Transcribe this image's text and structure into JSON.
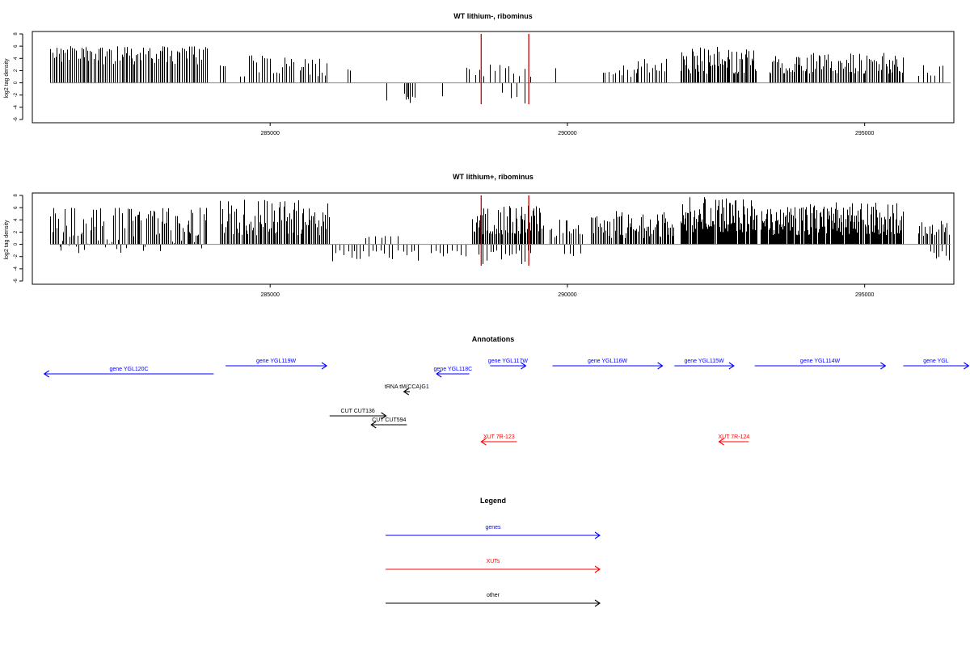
{
  "chart_data": [
    {
      "type": "bar",
      "title": "WT lithium-, ribominus",
      "ylabel": "log2 tag density",
      "xlabel": "",
      "xlim": [
        281000,
        296500
      ],
      "ylim": [
        -6,
        8
      ],
      "yticks": [
        -6,
        -4,
        -2,
        0,
        2,
        4,
        6,
        8
      ],
      "xticks": [
        285000,
        290000,
        295000
      ],
      "marker_color": "#cc0000",
      "markers_x": [
        288550,
        289350
      ],
      "segments": [
        {
          "from": 281300,
          "to": 283950,
          "min": -6,
          "max": -3,
          "sign": -1,
          "step": 30
        },
        {
          "from": 284150,
          "to": 284250,
          "min": 2.5,
          "max": 3.2,
          "sign": 1,
          "step": 50
        },
        {
          "from": 284500,
          "to": 284600,
          "min": 1,
          "max": 1.2,
          "sign": 1,
          "step": 100
        },
        {
          "from": 284650,
          "to": 285400,
          "min": 1.5,
          "max": 4.5,
          "sign": 1,
          "step": 40
        },
        {
          "from": 285500,
          "to": 285950,
          "min": 1,
          "max": 4,
          "sign": 1,
          "step": 40
        },
        {
          "from": 286300,
          "to": 286350,
          "min": 2,
          "max": 2.4,
          "sign": 1,
          "step": 60
        },
        {
          "from": 286950,
          "to": 287000,
          "min": 2.5,
          "max": 3,
          "sign": -1,
          "step": 60
        },
        {
          "from": 287250,
          "to": 287450,
          "min": 1.5,
          "max": 3.5,
          "sign": -1,
          "step": 30
        },
        {
          "from": 287900,
          "to": 287950,
          "min": 2,
          "max": 2.4,
          "sign": -1,
          "step": 60
        },
        {
          "from": 288300,
          "to": 288350,
          "min": 2,
          "max": 2.5,
          "sign": 1,
          "step": 60
        },
        {
          "from": 288450,
          "to": 289400,
          "min": 1,
          "max": 3,
          "sign": 1,
          "step": 90
        },
        {
          "from": 288900,
          "to": 289350,
          "min": 1,
          "max": 3.5,
          "sign": -1,
          "step": 120
        },
        {
          "from": 289800,
          "to": 289850,
          "min": 2.2,
          "max": 2.6,
          "sign": 1,
          "step": 60
        },
        {
          "from": 290600,
          "to": 291200,
          "min": 1,
          "max": 3,
          "sign": 1,
          "step": 50
        },
        {
          "from": 291150,
          "to": 291700,
          "min": 1.5,
          "max": 4,
          "sign": 1,
          "step": 40
        },
        {
          "from": 291900,
          "to": 293200,
          "min": 1.5,
          "max": 6,
          "sign": 1,
          "step": 22
        },
        {
          "from": 293400,
          "to": 295650,
          "min": 1.5,
          "max": 5,
          "sign": 1,
          "step": 25
        },
        {
          "from": 295900,
          "to": 296350,
          "min": 1,
          "max": 3,
          "sign": 1,
          "step": 60
        }
      ]
    },
    {
      "type": "bar",
      "title": "WT lithium+, ribominus",
      "ylabel": "log2 tag density",
      "xlabel": "",
      "xlim": [
        281000,
        296500
      ],
      "ylim": [
        -6,
        8
      ],
      "yticks": [
        -6,
        -4,
        -2,
        0,
        2,
        4,
        6,
        8
      ],
      "xticks": [
        285000,
        290000,
        295000
      ],
      "marker_color": "#cc0000",
      "markers_x": [
        288550,
        289350
      ],
      "segments": [
        {
          "from": 281300,
          "to": 283950,
          "min": -6,
          "max": 1.5,
          "sign": -1,
          "step": 25
        },
        {
          "from": 284150,
          "to": 286000,
          "min": 1.5,
          "max": 7.3,
          "sign": 1,
          "step": 22
        },
        {
          "from": 286050,
          "to": 287500,
          "min": 1,
          "max": 3,
          "sign": -1,
          "step": 70
        },
        {
          "from": 286600,
          "to": 287200,
          "min": 1,
          "max": 2.5,
          "sign": 1,
          "step": 90
        },
        {
          "from": 287700,
          "to": 288300,
          "min": 1,
          "max": 2,
          "sign": -1,
          "step": 70
        },
        {
          "from": 288400,
          "to": 289600,
          "min": 1.5,
          "max": 6.5,
          "sign": 1,
          "step": 20
        },
        {
          "from": 288500,
          "to": 289400,
          "min": 1,
          "max": 3.5,
          "sign": -1,
          "step": 60
        },
        {
          "from": 289700,
          "to": 290250,
          "min": 1,
          "max": 4.5,
          "sign": 1,
          "step": 40
        },
        {
          "from": 289950,
          "to": 290300,
          "min": 1,
          "max": 2.3,
          "sign": -1,
          "step": 80
        },
        {
          "from": 290400,
          "to": 291800,
          "min": 1,
          "max": 5.5,
          "sign": 1,
          "step": 22
        },
        {
          "from": 291900,
          "to": 293200,
          "min": 2,
          "max": 7.8,
          "sign": 1,
          "step": 14
        },
        {
          "from": 293250,
          "to": 295650,
          "min": 1.5,
          "max": 7,
          "sign": 1,
          "step": 15
        },
        {
          "from": 295900,
          "to": 296450,
          "min": 1,
          "max": 4,
          "sign": 1,
          "step": 30
        },
        {
          "from": 296100,
          "to": 296450,
          "min": 1,
          "max": 2.7,
          "sign": -1,
          "step": 60
        }
      ]
    }
  ],
  "annotations": {
    "title": "Annotations",
    "features": [
      {
        "label": "gene YGL120C",
        "from": 284050,
        "to": 281200,
        "color": "#0000ff",
        "row": 1
      },
      {
        "label": "gene YGL119W",
        "from": 284250,
        "to": 285950,
        "color": "#0000ff",
        "row": 0
      },
      {
        "label": "gene YGL118C",
        "from": 288350,
        "to": 287800,
        "color": "#0000ff",
        "row": 1
      },
      {
        "label": "gene YGL117W",
        "from": 288700,
        "to": 289300,
        "color": "#0000ff",
        "row": 0
      },
      {
        "label": "gene YGL116W",
        "from": 289750,
        "to": 291600,
        "color": "#0000ff",
        "row": 0
      },
      {
        "label": "gene YGL115W",
        "from": 291800,
        "to": 292800,
        "color": "#0000ff",
        "row": 0
      },
      {
        "label": "gene YGL114W",
        "from": 293150,
        "to": 295350,
        "color": "#0000ff",
        "row": 0
      },
      {
        "label": "gene YGL",
        "from": 295650,
        "to": 296750,
        "color": "#0000ff",
        "row": 0
      },
      {
        "label": "tRNA tM(CCA)G1",
        "from": 287350,
        "to": 287250,
        "color": "#000000",
        "row": 2
      },
      {
        "label": "CUT CUT136",
        "from": 286000,
        "to": 286950,
        "color": "#000000",
        "row": 3
      },
      {
        "label": "CUT CUT594",
        "from": 287300,
        "to": 286700,
        "color": "#000000",
        "row": 4
      },
      {
        "label": "XUT 7R-123",
        "from": 289150,
        "to": 288550,
        "color": "#ff0000",
        "row": 5
      },
      {
        "label": "XUT 7R-124",
        "from": 293050,
        "to": 292550,
        "color": "#ff0000",
        "row": 5
      }
    ]
  },
  "legend": {
    "title": "Legend",
    "items": [
      {
        "label": "genes",
        "color": "#0000ff"
      },
      {
        "label": "XUTs",
        "color": "#ff0000"
      },
      {
        "label": "other",
        "color": "#000000"
      }
    ]
  }
}
